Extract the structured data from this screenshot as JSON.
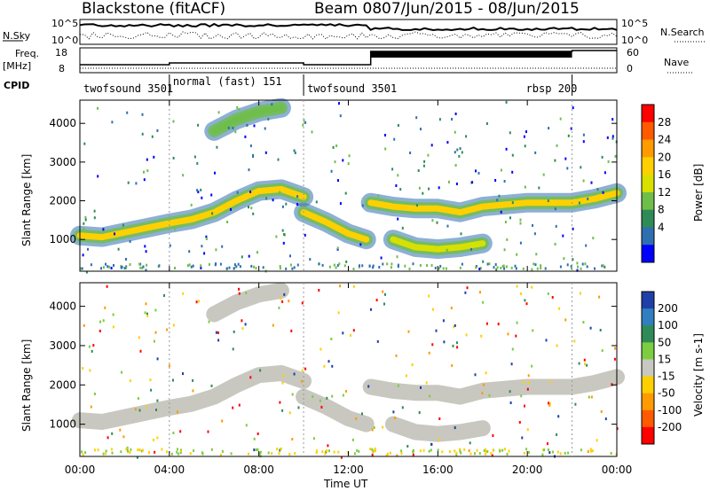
{
  "header": {
    "title": "Blackstone (fitACF)",
    "beam": "Beam 08",
    "date_range": "07/Jun/2015 - 08/Jun/2015"
  },
  "summary": {
    "nsky_label": "N.Sky",
    "nsearch_label": "N.Search",
    "freq_label_1": "Freq.",
    "freq_label_2": "[MHz]",
    "nave_label": "Nave",
    "cpid_label": "CPID",
    "nsky_ticks": [
      "10^5",
      "10^0"
    ],
    "nsearch_ticks": [
      "10^5",
      "10^0"
    ],
    "freq_ticks": [
      "18",
      "8"
    ],
    "nave_ticks": [
      "60",
      "0"
    ]
  },
  "cpid": [
    {
      "label": "twofsound 3501",
      "start_hour": 0,
      "end_hour": 4
    },
    {
      "label": "normal (fast) 151",
      "start_hour": 4,
      "end_hour": 10
    },
    {
      "label": "twofsound 3501",
      "start_hour": 10,
      "end_hour": 22
    },
    {
      "label": "rbsp 200",
      "start_hour": 22,
      "end_hour": 24
    }
  ],
  "power_colorbar": {
    "label": "Power [dB]",
    "ticks": [
      "28",
      "24",
      "20",
      "16",
      "12",
      "8",
      "4"
    ],
    "colors": [
      "#ff0000",
      "#ff5a00",
      "#ff9a00",
      "#ffd000",
      "#d8e000",
      "#6fbe4a",
      "#2e8b57",
      "#2f6fb0",
      "#0000ff"
    ]
  },
  "velocity_colorbar": {
    "label": "Velocity [m s-1]",
    "ticks": [
      "200",
      "100",
      "50",
      "15",
      "-15",
      "-50",
      "-100",
      "-200"
    ],
    "colors": [
      "#1f3fa8",
      "#2f7fc0",
      "#2e8b57",
      "#7ccd3f",
      "#c8c8c0",
      "#ffd000",
      "#ff9a00",
      "#ff5a00",
      "#ff0000"
    ]
  },
  "axes": {
    "ylabel": "Slant Range [km]",
    "xlabel": "Time UT",
    "yticks": [
      "4000",
      "3000",
      "2000",
      "1000"
    ],
    "xticks": [
      "00:00",
      "04:00",
      "08:00",
      "12:00",
      "16:00",
      "20:00",
      "00:00"
    ]
  },
  "chart_data": [
    {
      "type": "heatmap",
      "title": "",
      "xlabel": "Time UT",
      "ylabel": "Slant Range [km]",
      "zlabel": "Power [dB]",
      "xlim": [
        0,
        24
      ],
      "ylim": [
        180,
        4600
      ],
      "zlim": [
        0,
        32
      ],
      "backscatter_bands": [
        {
          "x": [
            0,
            1,
            2,
            3,
            4,
            5,
            6,
            7,
            8,
            9,
            10
          ],
          "y": [
            1100,
            1060,
            1180,
            1300,
            1420,
            1520,
            1700,
            2000,
            2250,
            2300,
            2100
          ],
          "power_db": 22
        },
        {
          "x": [
            10,
            11,
            12,
            12.8
          ],
          "y": [
            1700,
            1450,
            1150,
            1000
          ],
          "power_db": 20
        },
        {
          "x": [
            13,
            14,
            15,
            16,
            17,
            18,
            19,
            20,
            21,
            22,
            23,
            24
          ],
          "y": [
            1950,
            1850,
            1800,
            1800,
            1700,
            1850,
            1900,
            1950,
            1950,
            1950,
            2050,
            2200
          ],
          "power_db": 20
        },
        {
          "x": [
            14,
            15,
            16,
            17,
            18
          ],
          "y": [
            1000,
            800,
            750,
            800,
            900
          ],
          "power_db": 18
        },
        {
          "x": [
            6,
            7,
            8,
            9
          ],
          "y": [
            3800,
            4100,
            4300,
            4400
          ],
          "power_db": 12
        }
      ]
    },
    {
      "type": "heatmap",
      "title": "",
      "xlabel": "Time UT",
      "ylabel": "Slant Range [km]",
      "zlabel": "Velocity [m s-1]",
      "xlim": [
        0,
        24
      ],
      "ylim": [
        180,
        4600
      ],
      "zlim": [
        -250,
        250
      ],
      "backscatter_bands": [
        {
          "x": [
            0,
            1,
            2,
            3,
            4,
            5,
            6,
            7,
            8,
            9,
            10
          ],
          "y": [
            1100,
            1060,
            1180,
            1300,
            1420,
            1520,
            1700,
            2000,
            2250,
            2300,
            2100
          ],
          "velocity": 0
        },
        {
          "x": [
            10,
            11,
            12,
            12.8
          ],
          "y": [
            1700,
            1450,
            1150,
            1000
          ],
          "velocity": 0
        },
        {
          "x": [
            13,
            14,
            15,
            16,
            17,
            18,
            19,
            20,
            21,
            22,
            23,
            24
          ],
          "y": [
            1950,
            1850,
            1800,
            1800,
            1700,
            1850,
            1900,
            1950,
            1950,
            1950,
            2050,
            2200
          ],
          "velocity": 0
        },
        {
          "x": [
            14,
            15,
            16,
            17,
            18
          ],
          "y": [
            1000,
            800,
            750,
            800,
            900
          ],
          "velocity": 0
        },
        {
          "x": [
            6,
            7,
            8,
            9
          ],
          "y": [
            3800,
            4100,
            4300,
            4400
          ],
          "velocity": 0
        }
      ]
    }
  ]
}
